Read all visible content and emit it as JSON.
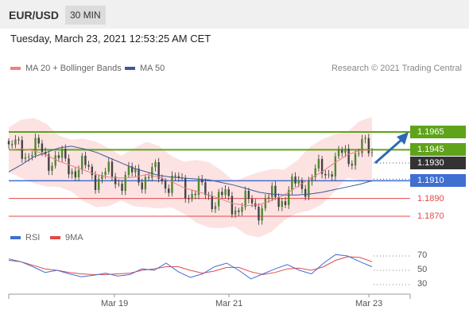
{
  "header": {
    "pair": "EUR/USD",
    "timeframe": "30 MIN"
  },
  "timestamp": "Tuesday, March 23, 2021 12:53:25 AM CET",
  "legend": {
    "ma20_label": "MA 20 + Bollinger Bands",
    "ma50_label": "MA 50",
    "rsi_label": "RSI",
    "ma9_label": "9MA"
  },
  "credit": "Research © 2021 Trading Central",
  "colors": {
    "green": "#5fa31b",
    "blue": "#3f6fd1",
    "red": "#e34848",
    "dark": "#333333",
    "band": "#fde2e2",
    "ma20": "#f08080",
    "ma50": "#3b5b9a",
    "arrow": "#2d6ab3"
  },
  "levels": [
    {
      "label": "1.1965",
      "value": 1.1965,
      "style": "green-box"
    },
    {
      "label": "1.1945",
      "value": 1.1945,
      "style": "green-box"
    },
    {
      "label": "1.1930",
      "value": 1.193,
      "style": "dark-box"
    },
    {
      "label": "1.1910",
      "value": 1.191,
      "style": "blue-box"
    },
    {
      "label": "1.1890",
      "value": 1.189,
      "style": "red-text"
    },
    {
      "label": "1.1870",
      "value": 1.187,
      "style": "red-text"
    }
  ],
  "x_axis": {
    "ticks": [
      "Mar 19",
      "Mar 21",
      "Mar 23"
    ]
  },
  "rsi_axis": {
    "ticks": [
      "70",
      "50",
      "30"
    ]
  },
  "chart_data": {
    "type": "line",
    "price_range": [
      1.187,
      1.1965
    ],
    "series": [
      {
        "name": "MA 20 + Bollinger Bands",
        "values": [
          1.1945,
          1.1946,
          1.1944,
          1.1939,
          1.1932,
          1.1927,
          1.1922,
          1.1917,
          1.1914,
          1.1913,
          1.1914,
          1.1917,
          1.1914,
          1.1909,
          1.1902,
          1.1898,
          1.1894,
          1.1889,
          1.1884,
          1.1882,
          1.1883,
          1.1888,
          1.1894,
          1.1903,
          1.1912,
          1.192,
          1.193,
          1.1939,
          1.1944,
          1.1945
        ]
      },
      {
        "name": "MA 50",
        "values": [
          1.192,
          1.1928,
          1.1937,
          1.1942,
          1.1947,
          1.1949,
          1.1946,
          1.1942,
          1.1936,
          1.193,
          1.1924,
          1.192,
          1.1916,
          1.1914,
          1.1913,
          1.1912,
          1.1911,
          1.1908,
          1.1905,
          1.1901,
          1.1897,
          1.1895,
          1.1894,
          1.1894,
          1.1895,
          1.1897,
          1.19,
          1.1903,
          1.1906,
          1.191
        ]
      },
      {
        "name": "RSI",
        "values": [
          64,
          62,
          55,
          47,
          50,
          45,
          41,
          43,
          46,
          42,
          44,
          52,
          50,
          60,
          48,
          40,
          45,
          55,
          60,
          50,
          38,
          45,
          52,
          58,
          50,
          45,
          60,
          72,
          70,
          62,
          55
        ]
      },
      {
        "name": "9MA",
        "values": [
          66,
          62,
          57,
          52,
          50,
          47,
          45,
          44,
          44,
          45,
          46,
          50,
          52,
          55,
          55,
          50,
          46,
          49,
          54,
          54,
          48,
          44,
          47,
          52,
          53,
          50,
          55,
          64,
          69,
          68,
          62
        ]
      }
    ]
  }
}
